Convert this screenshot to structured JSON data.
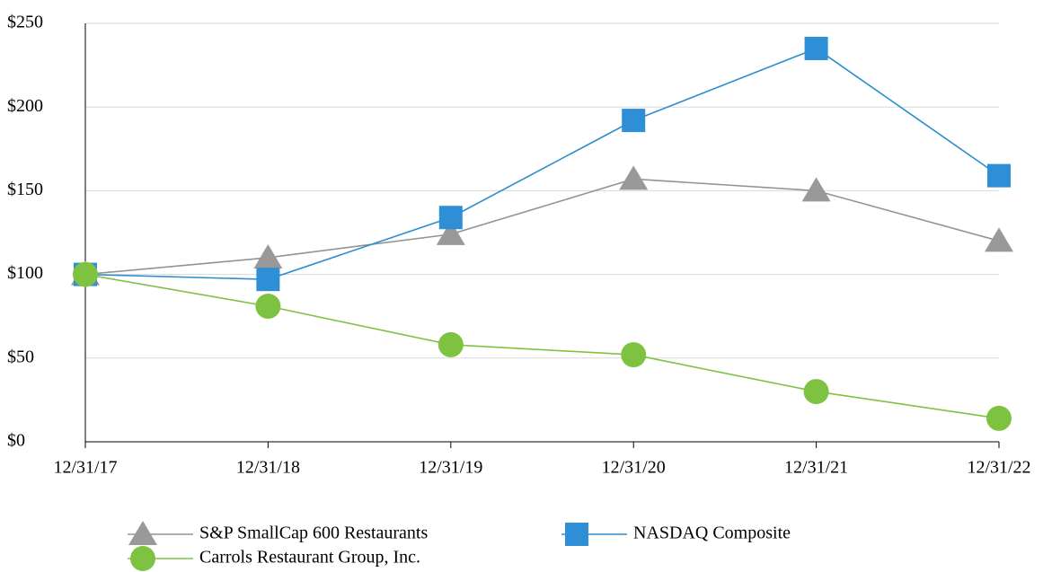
{
  "chart_data": {
    "type": "line",
    "categories": [
      "12/31/17",
      "12/31/18",
      "12/31/19",
      "12/31/20",
      "12/31/21",
      "12/31/22"
    ],
    "series": [
      {
        "name": "S&P SmallCap 600 Restaurants",
        "color": "#999999",
        "line_color": "#939393",
        "marker": "triangle",
        "values": [
          100,
          110,
          124,
          157,
          150,
          120
        ]
      },
      {
        "name": "NASDAQ Composite",
        "color": "#2e8fd6",
        "line_color": "#2b8fcb",
        "marker": "square",
        "values": [
          100,
          97,
          134,
          192,
          235,
          159
        ]
      },
      {
        "name": "Carrols Restaurant Group, Inc.",
        "color": "#7ec242",
        "line_color": "#7ec242",
        "marker": "circle",
        "values": [
          100,
          81,
          58,
          52,
          30,
          14
        ]
      }
    ],
    "ylim": [
      0,
      250
    ],
    "yticks": [
      {
        "value": 0,
        "label": "$0"
      },
      {
        "value": 50,
        "label": "$50"
      },
      {
        "value": 100,
        "label": "$100"
      },
      {
        "value": 150,
        "label": "$150"
      },
      {
        "value": 200,
        "label": "$200"
      },
      {
        "value": 250,
        "label": "$250"
      }
    ],
    "grid": true
  }
}
